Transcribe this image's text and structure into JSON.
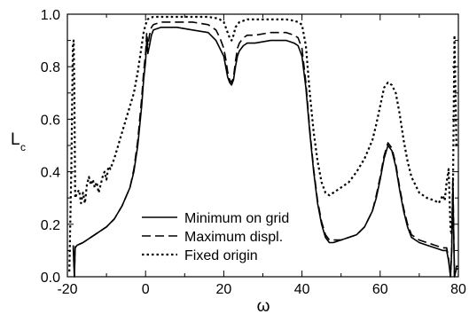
{
  "chart_data": {
    "type": "line",
    "xlabel": "ω",
    "ylabel": "L",
    "ylabel_subscript": "c",
    "xlim": [
      -20,
      80
    ],
    "ylim": [
      0.0,
      1.0
    ],
    "xticks": [
      -20,
      0,
      20,
      40,
      60,
      80
    ],
    "xtick_labels": [
      "-20",
      "0",
      "20",
      "40",
      "60",
      "80"
    ],
    "yticks": [
      0.0,
      0.2,
      0.4,
      0.6,
      0.8,
      1.0
    ],
    "ytick_labels": [
      "0.0",
      "0.2",
      "0.4",
      "0.6",
      "0.8",
      "1.0"
    ],
    "grid": false,
    "legend_position": "lower-center",
    "series": [
      {
        "name": "Minimum on grid",
        "style": "solid",
        "color": "#000000",
        "x": [
          -18.5,
          -18.2,
          -18,
          -17.5,
          -16,
          -14,
          -12,
          -10,
          -8,
          -6,
          -4,
          -3,
          -2,
          -1,
          -0.5,
          0,
          0.3,
          0.6,
          1,
          1.5,
          2,
          4,
          8,
          12,
          16,
          18,
          19,
          20,
          20.5,
          21,
          21.5,
          22,
          22.5,
          23,
          23.5,
          24,
          25,
          26,
          28,
          32,
          36,
          38,
          39,
          40,
          41,
          42,
          43,
          44,
          45,
          46,
          47,
          48,
          50,
          52,
          54,
          56,
          58,
          59,
          60,
          61,
          62,
          63,
          64,
          65,
          66,
          67,
          68,
          70,
          72,
          74,
          76,
          77,
          77.5,
          78,
          78.3,
          78.6,
          79,
          79.5,
          80
        ],
        "y": [
          0.11,
          0.0,
          0.11,
          0.12,
          0.13,
          0.15,
          0.17,
          0.19,
          0.22,
          0.27,
          0.34,
          0.4,
          0.5,
          0.65,
          0.75,
          0.82,
          0.9,
          0.85,
          0.88,
          0.92,
          0.94,
          0.95,
          0.95,
          0.94,
          0.93,
          0.9,
          0.87,
          0.84,
          0.8,
          0.76,
          0.74,
          0.73,
          0.75,
          0.8,
          0.84,
          0.86,
          0.88,
          0.89,
          0.89,
          0.9,
          0.9,
          0.89,
          0.88,
          0.84,
          0.72,
          0.55,
          0.4,
          0.28,
          0.2,
          0.15,
          0.13,
          0.13,
          0.14,
          0.15,
          0.16,
          0.19,
          0.25,
          0.3,
          0.37,
          0.45,
          0.5,
          0.48,
          0.42,
          0.33,
          0.25,
          0.19,
          0.15,
          0.13,
          0.12,
          0.11,
          0.1,
          0.1,
          0.06,
          0.0,
          0.1,
          0.35,
          0.0,
          0.03,
          0.03
        ]
      },
      {
        "name": "Maximum displ.",
        "style": "dashed",
        "color": "#000000",
        "x": [
          -18.5,
          -18.2,
          -18,
          -17.5,
          -16,
          -14,
          -12,
          -10,
          -8,
          -6,
          -4,
          -3,
          -2,
          -1,
          -0.5,
          0,
          0.3,
          0.6,
          1,
          1.5,
          2,
          4,
          8,
          12,
          16,
          18,
          19,
          20,
          20.5,
          21,
          21.5,
          22,
          22.5,
          23,
          23.5,
          24,
          25,
          26,
          28,
          32,
          36,
          38,
          39,
          40,
          41,
          42,
          43,
          44,
          45,
          46,
          47,
          48,
          50,
          52,
          54,
          56,
          58,
          59,
          60,
          61,
          62,
          63,
          64,
          65,
          66,
          67,
          68,
          70,
          72,
          74,
          76,
          77,
          77.5,
          78,
          78.3,
          78.6,
          79,
          79.5,
          80
        ],
        "y": [
          0.12,
          0.0,
          0.12,
          0.12,
          0.13,
          0.15,
          0.17,
          0.19,
          0.22,
          0.27,
          0.34,
          0.41,
          0.52,
          0.68,
          0.78,
          0.85,
          0.93,
          0.88,
          0.92,
          0.95,
          0.96,
          0.97,
          0.97,
          0.97,
          0.96,
          0.94,
          0.91,
          0.87,
          0.83,
          0.78,
          0.75,
          0.74,
          0.76,
          0.82,
          0.87,
          0.89,
          0.91,
          0.92,
          0.92,
          0.93,
          0.93,
          0.92,
          0.91,
          0.87,
          0.74,
          0.56,
          0.41,
          0.29,
          0.21,
          0.16,
          0.14,
          0.14,
          0.14,
          0.15,
          0.16,
          0.19,
          0.25,
          0.31,
          0.38,
          0.46,
          0.51,
          0.49,
          0.43,
          0.34,
          0.26,
          0.2,
          0.16,
          0.14,
          0.13,
          0.12,
          0.11,
          0.11,
          0.07,
          0.0,
          0.11,
          0.38,
          0.0,
          0.04,
          0.04
        ]
      },
      {
        "name": "Fixed origin",
        "style": "dotted",
        "color": "#000000",
        "x": [
          -19.5,
          -19,
          -18.6,
          -18.4,
          -18.2,
          -18,
          -17.5,
          -17,
          -16.5,
          -16,
          -15.5,
          -15,
          -14.5,
          -14,
          -13.5,
          -13,
          -12.5,
          -12,
          -11.5,
          -11,
          -10.5,
          -10,
          -9.5,
          -9,
          -8,
          -7,
          -6,
          -5,
          -4,
          -3,
          -2,
          -1,
          -0.5,
          0,
          0.5,
          1,
          2,
          4,
          8,
          12,
          16,
          18,
          19,
          20,
          20.5,
          21,
          21.5,
          22,
          22.5,
          23,
          23.5,
          24,
          25,
          26,
          28,
          32,
          36,
          38,
          39,
          40,
          41,
          42,
          43,
          44,
          45,
          46,
          47,
          48,
          50,
          52,
          54,
          56,
          58,
          59,
          60,
          61,
          62,
          63,
          64,
          65,
          66,
          67,
          68,
          70,
          72,
          74,
          75,
          76,
          76.5,
          77,
          77.5,
          78,
          78.3,
          78.6,
          79,
          79.5,
          80
        ],
        "y": [
          0.02,
          0.4,
          0.88,
          0.9,
          0.7,
          0.3,
          0.32,
          0.33,
          0.28,
          0.32,
          0.28,
          0.35,
          0.38,
          0.35,
          0.37,
          0.34,
          0.36,
          0.32,
          0.35,
          0.38,
          0.4,
          0.37,
          0.42,
          0.41,
          0.45,
          0.5,
          0.55,
          0.6,
          0.65,
          0.7,
          0.78,
          0.88,
          0.93,
          0.96,
          0.98,
          0.985,
          0.99,
          0.99,
          0.99,
          0.99,
          0.99,
          0.985,
          0.98,
          0.97,
          0.95,
          0.93,
          0.91,
          0.9,
          0.92,
          0.95,
          0.96,
          0.97,
          0.975,
          0.98,
          0.98,
          0.98,
          0.98,
          0.975,
          0.97,
          0.96,
          0.88,
          0.7,
          0.55,
          0.44,
          0.36,
          0.32,
          0.31,
          0.32,
          0.34,
          0.36,
          0.4,
          0.45,
          0.52,
          0.58,
          0.65,
          0.72,
          0.74,
          0.73,
          0.7,
          0.62,
          0.52,
          0.44,
          0.38,
          0.32,
          0.3,
          0.29,
          0.28,
          0.31,
          0.29,
          0.36,
          0.41,
          0.18,
          0.16,
          0.3,
          0.92,
          0.5,
          0.5
        ]
      }
    ]
  }
}
